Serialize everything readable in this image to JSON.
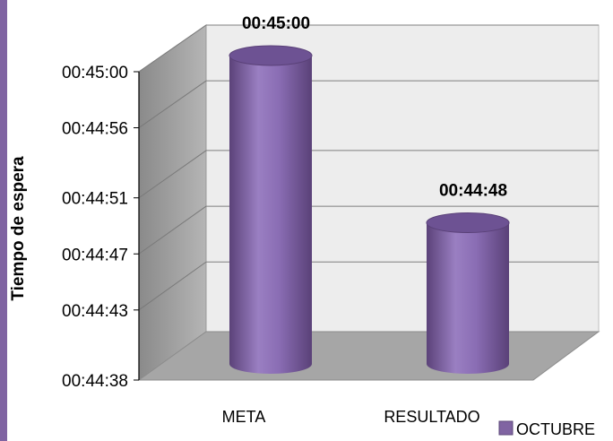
{
  "chart_data": {
    "type": "bar",
    "ylabel": "Tiempo de espera",
    "xlabel": "",
    "categories": [
      "META",
      "RESULTADO"
    ],
    "series": [
      {
        "name": "OCTUBRE",
        "values": [
          "00:45:00",
          "00:44:48"
        ],
        "color": "#8064a2"
      }
    ],
    "data_labels": [
      "00:45:00",
      "00:44:48"
    ],
    "y_ticks": [
      "00:44:38",
      "00:44:43",
      "00:44:47",
      "00:44:51",
      "00:44:56",
      "00:45:00"
    ],
    "ylim": [
      "00:44:38",
      "00:45:00"
    ],
    "grid": true,
    "legend_position": "bottom-right",
    "style": "3d-cylinder"
  }
}
